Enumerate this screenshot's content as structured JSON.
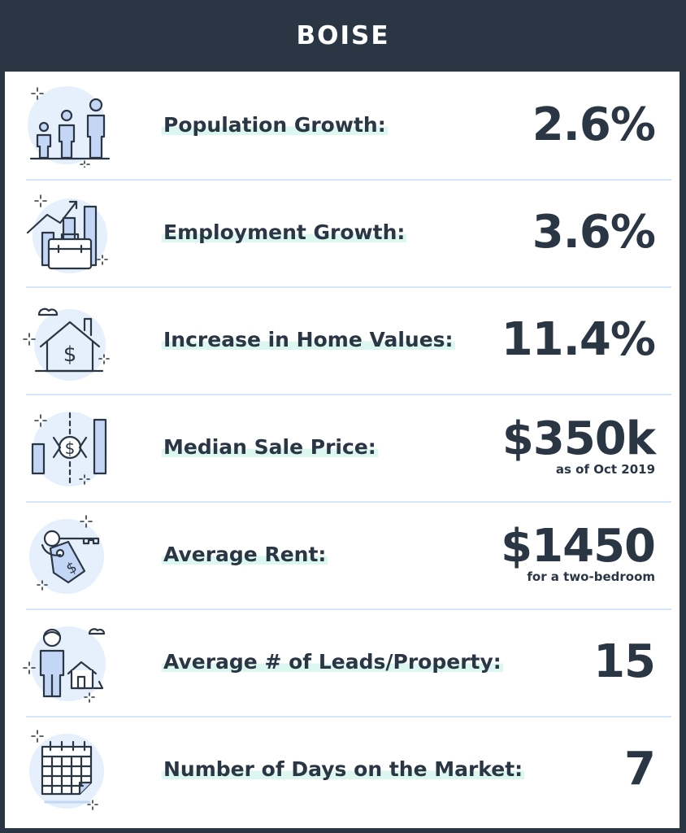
{
  "header": {
    "title": "BOISE"
  },
  "stats": [
    {
      "icon": "family-icon",
      "label": "Population Growth:",
      "value": "2.6%",
      "sub": ""
    },
    {
      "icon": "briefcase-chart-icon",
      "label": "Employment Growth:",
      "value": "3.6%",
      "sub": ""
    },
    {
      "icon": "house-dollar-icon",
      "label": "Increase in Home Values:",
      "value": "11.4%",
      "sub": ""
    },
    {
      "icon": "price-bars-icon",
      "label": "Median Sale Price:",
      "value": "$350k",
      "sub": "as  of Oct 2019"
    },
    {
      "icon": "key-tag-icon",
      "label": "Average Rent:",
      "value": "$1450",
      "sub": "for a two-bedroom"
    },
    {
      "icon": "person-house-icon",
      "label": "Average # of Leads/Property:",
      "value": "15",
      "sub": ""
    },
    {
      "icon": "calendar-icon",
      "label": "Number of Days on the Market:",
      "value": "7",
      "sub": ""
    }
  ]
}
